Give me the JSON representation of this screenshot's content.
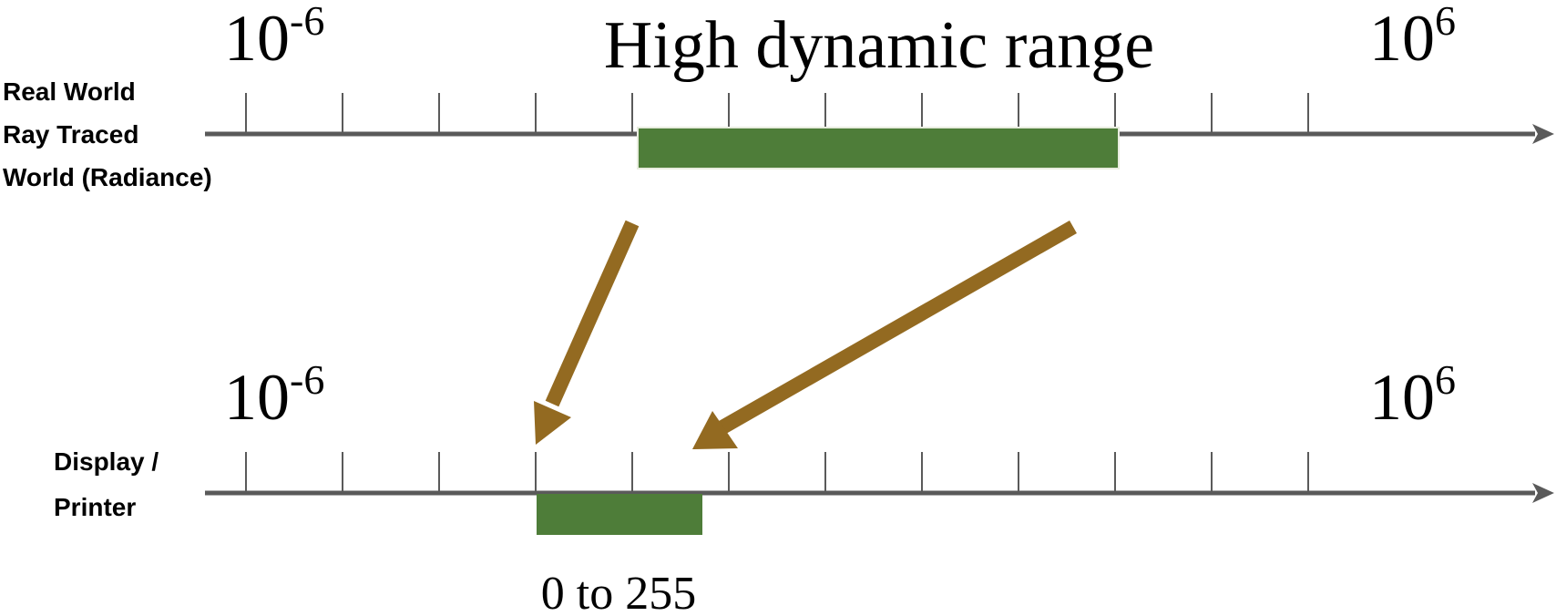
{
  "title": "High dynamic range",
  "colors": {
    "axis": "#5a5a5a",
    "range_bar": "#4e7d39",
    "mapping_arrow": "#936a21",
    "text": "#000000"
  },
  "top_axis": {
    "labels": [
      "Real World",
      "Ray Traced",
      "World (Radiance)"
    ],
    "min_label": {
      "base": "10",
      "exp": "-6"
    },
    "max_label": {
      "base": "10",
      "exp": "6"
    },
    "ticks": 12
  },
  "bottom_axis": {
    "labels": [
      "Display /",
      "Printer"
    ],
    "min_label": {
      "base": "10",
      "exp": "-6"
    },
    "max_label": {
      "base": "10",
      "exp": "6"
    },
    "ticks": 12,
    "range_caption": "0 to 255"
  },
  "arrows": [
    {
      "name": "left-mapping-arrow",
      "icon": "arrow-down-left-icon"
    },
    {
      "name": "right-mapping-arrow",
      "icon": "arrow-down-left-icon"
    }
  ]
}
